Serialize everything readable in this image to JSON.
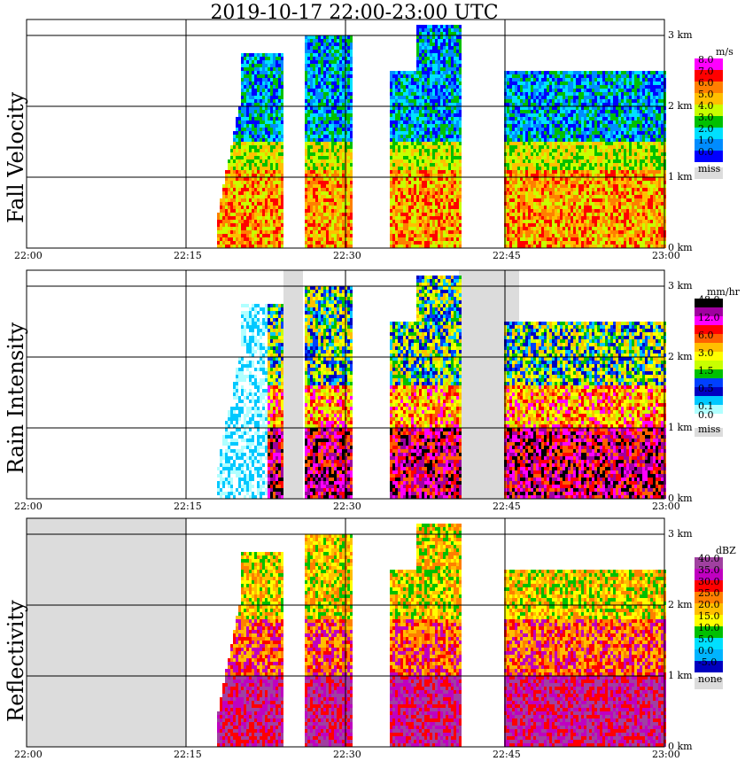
{
  "title": "2019-10-17   22:00-23:00 UTC",
  "chart_data": {
    "type": "heatmap",
    "x_ticks": [
      "22:00",
      "22:15",
      "22:30",
      "22:45",
      "23:00"
    ],
    "height_ticks": [
      "0 km",
      "1 km",
      "2 km",
      "3 km"
    ],
    "panels": [
      {
        "name": "fall-velocity",
        "ylabel": "Fall Velocity",
        "unit": "m/s",
        "legend": [
          {
            "label": "8.0",
            "color": "#ff00ff"
          },
          {
            "label": "7.0",
            "color": "#ff0000"
          },
          {
            "label": "6.0",
            "color": "#ff7f00"
          },
          {
            "label": "5.0",
            "color": "#ffbf00"
          },
          {
            "label": "4.0",
            "color": "#c8ff00"
          },
          {
            "label": "3.0",
            "color": "#00c000"
          },
          {
            "label": "2.0",
            "color": "#00e0ff"
          },
          {
            "label": "1.0",
            "color": "#008cff"
          },
          {
            "label": "0.0",
            "color": "#0000ff"
          },
          {
            "label": "miss",
            "color": "#dcdcdc"
          }
        ]
      },
      {
        "name": "rain-intensity",
        "ylabel": "Rain Intensity",
        "unit": "mm/hr",
        "legend": [
          {
            "label": "48.0",
            "color": "#000000"
          },
          {
            "label": "",
            "color": "#a000a0"
          },
          {
            "label": "12.0",
            "color": "#ff00ff"
          },
          {
            "label": "",
            "color": "#ff0000"
          },
          {
            "label": "6.0",
            "color": "#ff6000"
          },
          {
            "label": "",
            "color": "#ffbf00"
          },
          {
            "label": "3.0",
            "color": "#ffff00"
          },
          {
            "label": "",
            "color": "#c8ff00"
          },
          {
            "label": "1.5",
            "color": "#00c000"
          },
          {
            "label": "",
            "color": "#0040ff"
          },
          {
            "label": "0.5",
            "color": "#0000c0"
          },
          {
            "label": "",
            "color": "#00c8ff"
          },
          {
            "label": "0.1",
            "color": "#b0ffff"
          },
          {
            "label": "0.0",
            "color": "#ffffff"
          },
          {
            "label": "miss",
            "color": "#dcdcdc"
          }
        ]
      },
      {
        "name": "reflectivity",
        "ylabel": "Reflectivity",
        "unit": "dBZ",
        "legend": [
          {
            "label": "40.0",
            "color": "#a040a0"
          },
          {
            "label": "35.0",
            "color": "#c000c0"
          },
          {
            "label": "30.0",
            "color": "#ff0000"
          },
          {
            "label": "25.0",
            "color": "#ff7f00"
          },
          {
            "label": "20.0",
            "color": "#ffbf00"
          },
          {
            "label": "15.0",
            "color": "#ffff00"
          },
          {
            "label": "10.0",
            "color": "#00c000"
          },
          {
            "label": "5.0",
            "color": "#00e0ff"
          },
          {
            "label": "0.0",
            "color": "#00b4ff"
          },
          {
            "label": "-5.0",
            "color": "#0000c0"
          },
          {
            "label": "none",
            "color": "#dcdcdc"
          }
        ]
      }
    ]
  }
}
